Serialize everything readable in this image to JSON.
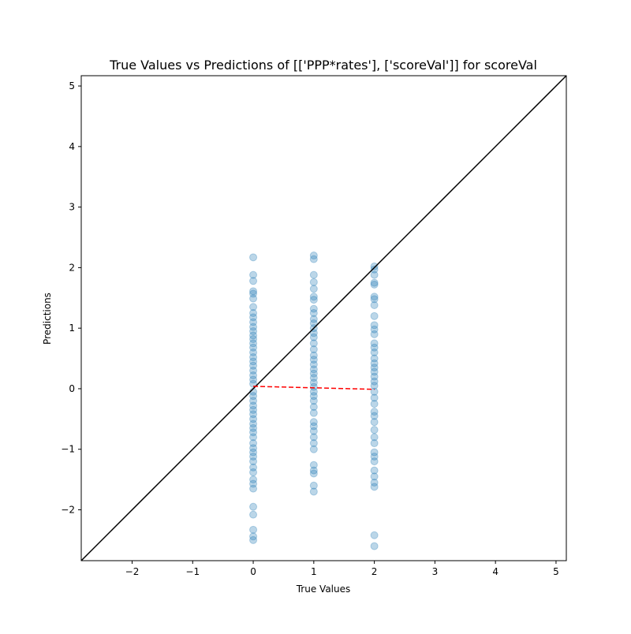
{
  "chart_data": {
    "type": "scatter",
    "title": "True Values vs Predictions of [['PPP*rates'], ['scoreVal']] for scoreVal",
    "x_label": "True Values",
    "y_label": "Predictions",
    "xlim": [
      -2.84,
      5.17
    ],
    "ylim": [
      -2.84,
      5.17
    ],
    "xticks": [
      {
        "value": -2,
        "label": "−2"
      },
      {
        "value": -1,
        "label": "−1"
      },
      0,
      1,
      2,
      3,
      4,
      5
    ],
    "yticks": [
      {
        "value": -2,
        "label": "−2"
      },
      {
        "value": -1,
        "label": "−1"
      },
      0,
      1,
      2,
      3,
      4,
      5
    ],
    "series": [
      {
        "color": "#1f77b4",
        "opacity": 0.3,
        "x": [
          0,
          0,
          0,
          0,
          0,
          0,
          0,
          0,
          0,
          0,
          0,
          0,
          0,
          0,
          0,
          0,
          0,
          0,
          0,
          0,
          0,
          0,
          0,
          0,
          0,
          0,
          0,
          0,
          0,
          0,
          0,
          0,
          0,
          0,
          0,
          0,
          0,
          0,
          0,
          0,
          0,
          0,
          0,
          0,
          0,
          0,
          0,
          0,
          0,
          0,
          1,
          1,
          1,
          1,
          1,
          1,
          1,
          1,
          1,
          1,
          1,
          1,
          1,
          1,
          1,
          1,
          1,
          1,
          1,
          1,
          1,
          1,
          1,
          1,
          1,
          1,
          1,
          1,
          1,
          1,
          1,
          1,
          1,
          1,
          1,
          1,
          1,
          1,
          1,
          1,
          2,
          2,
          2,
          2,
          2,
          2,
          2,
          2,
          2,
          2,
          2,
          2,
          2,
          2,
          2,
          2,
          2,
          2,
          2,
          2,
          2,
          2,
          2,
          2,
          2,
          2,
          2,
          2,
          2,
          2,
          2,
          2,
          2,
          2,
          2,
          2,
          2,
          2,
          2,
          2
        ],
        "values": [
          2.17,
          1.88,
          1.78,
          1.61,
          1.57,
          1.49,
          1.35,
          1.25,
          1.18,
          1.1,
          1.02,
          0.95,
          0.88,
          0.82,
          0.75,
          0.68,
          0.6,
          0.52,
          0.45,
          0.38,
          0.3,
          0.22,
          0.15,
          0.08,
          -0.05,
          -0.12,
          -0.2,
          -0.28,
          -0.35,
          -0.42,
          -0.5,
          -0.58,
          -0.65,
          -0.72,
          -0.8,
          -0.9,
          -0.98,
          -1.05,
          -1.12,
          -1.2,
          -1.3,
          -1.38,
          -1.5,
          -1.57,
          -1.65,
          -1.95,
          -2.08,
          -2.33,
          -2.44,
          -2.5,
          2.2,
          2.14,
          1.88,
          1.76,
          1.65,
          1.52,
          1.47,
          1.32,
          1.25,
          1.15,
          1.08,
          1.0,
          0.92,
          0.85,
          0.75,
          0.65,
          0.55,
          0.48,
          0.4,
          0.32,
          0.25,
          0.18,
          0.1,
          0.03,
          -0.05,
          -0.12,
          -0.2,
          -0.3,
          -0.4,
          -0.55,
          -0.62,
          -0.7,
          -0.8,
          -0.9,
          -1.0,
          -1.26,
          -1.35,
          -1.4,
          -1.6,
          -1.7,
          2.02,
          1.97,
          1.88,
          1.75,
          1.72,
          1.52,
          1.48,
          1.38,
          1.2,
          1.05,
          0.98,
          0.9,
          0.75,
          0.68,
          0.6,
          0.5,
          0.42,
          0.35,
          0.28,
          0.2,
          0.12,
          0.05,
          -0.05,
          -0.15,
          -0.25,
          -0.38,
          -0.45,
          -0.55,
          -0.68,
          -0.8,
          -0.9,
          -1.05,
          -1.12,
          -1.2,
          -1.35,
          -1.45,
          -1.55,
          -1.62,
          -2.42,
          -2.6
        ]
      }
    ],
    "lines": [
      {
        "x": [
          -2.84,
          5.17
        ],
        "y": [
          -2.84,
          5.17
        ],
        "color": "#000000",
        "style": "solid"
      },
      {
        "x": [
          0,
          2
        ],
        "y": [
          0.04,
          -0.01
        ],
        "color": "#ff0000",
        "style": "dashed"
      }
    ]
  }
}
